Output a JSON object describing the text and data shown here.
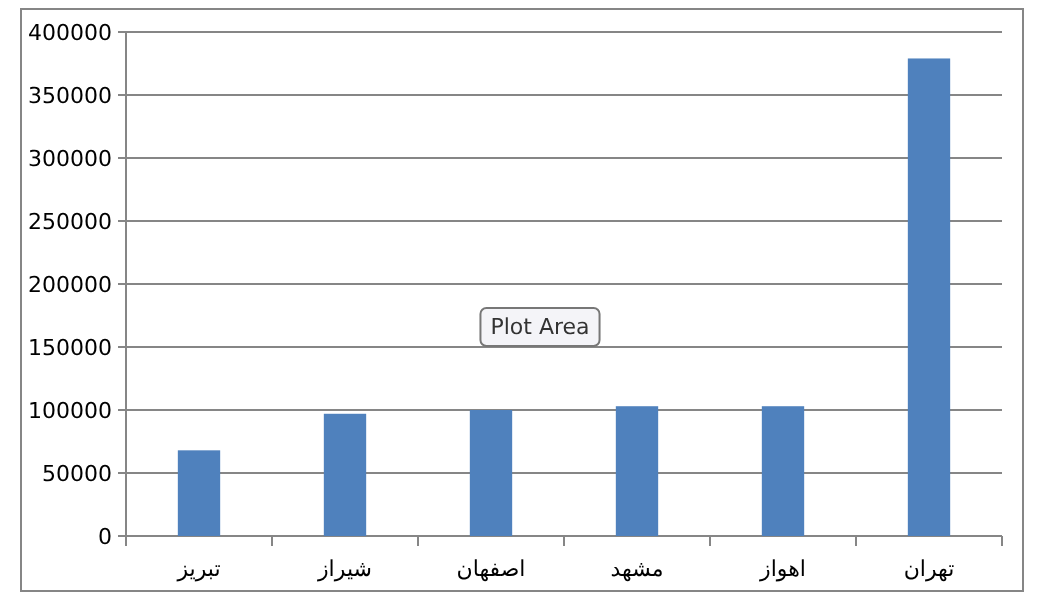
{
  "chart_data": {
    "type": "bar",
    "categories": [
      "تبریز",
      "شیراز",
      "اصفهان",
      "مشهد",
      "اهواز",
      "تهران"
    ],
    "values": [
      68000,
      97000,
      100000,
      103000,
      103000,
      379000
    ],
    "color": "#4f81bd",
    "ylim": [
      0,
      400000
    ],
    "yticks": [
      0,
      50000,
      100000,
      150000,
      200000,
      250000,
      300000,
      350000,
      400000
    ],
    "grid": "y",
    "annotations": [
      "Plot Area"
    ]
  }
}
